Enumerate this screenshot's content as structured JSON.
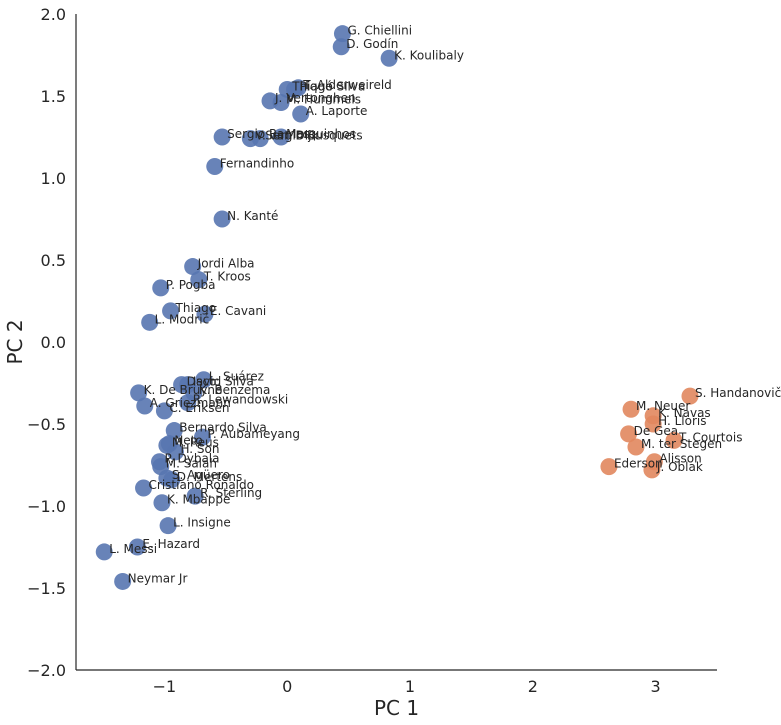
{
  "chart_data": {
    "type": "scatter",
    "title": "",
    "xlabel": "PC 1",
    "ylabel": "PC 2",
    "xlim": [
      -1.72,
      3.5
    ],
    "ylim": [
      -2.0,
      2.0
    ],
    "x_ticks": [
      -1,
      0,
      1,
      2,
      3
    ],
    "y_ticks": [
      2.0,
      1.5,
      1.0,
      0.5,
      0.0,
      -0.5,
      -1.0,
      -1.5,
      -2.0
    ],
    "x_tick_labels": [
      "−1",
      "0",
      "1",
      "2",
      "3"
    ],
    "y_tick_labels": [
      "2.0",
      "1.5",
      "1.0",
      "0.5",
      "0.0",
      "−0.5",
      "−1.0",
      "−1.5",
      "−2.0"
    ],
    "grid": false,
    "colors": {
      "cluster_a": "#5875b0",
      "cluster_b": "#e1875e",
      "axis": "#262626"
    },
    "series": [
      {
        "color": "#5875b0",
        "points": [
          {
            "label": "G. Chiellini",
            "x": 0.45,
            "y": 1.88
          },
          {
            "label": "D. Godín",
            "x": 0.44,
            "y": 1.8
          },
          {
            "label": "K. Koulibaly",
            "x": 0.83,
            "y": 1.73
          },
          {
            "label": "T. Alderweireld",
            "x": 0.09,
            "y": 1.55
          },
          {
            "label": "Thiago Silva",
            "x": 0.0,
            "y": 1.54
          },
          {
            "label": "Piqué",
            "x": 0.06,
            "y": 1.54
          },
          {
            "label": "M. Hummels",
            "x": -0.05,
            "y": 1.46
          },
          {
            "label": "J. Vertonghen",
            "x": -0.14,
            "y": 1.47
          },
          {
            "label": "A. Laporte",
            "x": 0.11,
            "y": 1.39
          },
          {
            "label": "Sergio Ramos",
            "x": -0.53,
            "y": 1.25
          },
          {
            "label": "Sergio Busquets",
            "x": -0.22,
            "y": 1.24
          },
          {
            "label": "V. van Dijk",
            "x": -0.3,
            "y": 1.24
          },
          {
            "label": "Marquinhos",
            "x": -0.05,
            "y": 1.25
          },
          {
            "label": "Fernandinho",
            "x": -0.59,
            "y": 1.07
          },
          {
            "label": "N. Kanté",
            "x": -0.53,
            "y": 0.75
          },
          {
            "label": "Jordi Alba",
            "x": -0.77,
            "y": 0.46
          },
          {
            "label": "T. Kroos",
            "x": -0.72,
            "y": 0.38
          },
          {
            "label": "P. Pogba",
            "x": -1.03,
            "y": 0.33
          },
          {
            "label": "Thiago",
            "x": -0.95,
            "y": 0.19
          },
          {
            "label": "E. Cavani",
            "x": -0.67,
            "y": 0.17
          },
          {
            "label": "L. Modrić",
            "x": -1.12,
            "y": 0.12
          },
          {
            "label": "L. Suárez",
            "x": -0.68,
            "y": -0.23
          },
          {
            "label": "David Silva",
            "x": -0.86,
            "y": -0.26
          },
          {
            "label": "Isco",
            "x": -0.81,
            "y": -0.26
          },
          {
            "label": "K. Benzema",
            "x": -0.76,
            "y": -0.31
          },
          {
            "label": "K. De Bruyne",
            "x": -1.21,
            "y": -0.31
          },
          {
            "label": "R. Lewandowski",
            "x": -0.81,
            "y": -0.37
          },
          {
            "label": "A. Griezmann",
            "x": -1.16,
            "y": -0.39
          },
          {
            "label": "C. Eriksen",
            "x": -1.0,
            "y": -0.42
          },
          {
            "label": "Bernardo Silva",
            "x": -0.92,
            "y": -0.54
          },
          {
            "label": "P. Aubameyang",
            "x": -0.69,
            "y": -0.58
          },
          {
            "label": "M. Reus",
            "x": -0.98,
            "y": -0.63
          },
          {
            "label": "Neto",
            "x": -0.96,
            "y": -0.62
          },
          {
            "label": "H. Son",
            "x": -0.91,
            "y": -0.67
          },
          {
            "label": "P. Dybala",
            "x": -1.04,
            "y": -0.73
          },
          {
            "label": "M. Salah",
            "x": -1.03,
            "y": -0.76
          },
          {
            "label": "S. Agüero",
            "x": -0.98,
            "y": -0.83
          },
          {
            "label": "D. Mertens",
            "x": -0.94,
            "y": -0.84
          },
          {
            "label": "Cristiano Ronaldo",
            "x": -1.17,
            "y": -0.89
          },
          {
            "label": "R. Sterling",
            "x": -0.75,
            "y": -0.94
          },
          {
            "label": "K. Mbappé",
            "x": -1.02,
            "y": -0.98
          },
          {
            "label": "L. Insigne",
            "x": -0.97,
            "y": -1.12
          },
          {
            "label": "E. Hazard",
            "x": -1.22,
            "y": -1.25
          },
          {
            "label": "L. Messi",
            "x": -1.49,
            "y": -1.28
          },
          {
            "label": "Neymar Jr",
            "x": -1.34,
            "y": -1.46
          }
        ]
      },
      {
        "color": "#e1875e",
        "points": [
          {
            "label": "S. Handanovič",
            "x": 3.28,
            "y": -0.33
          },
          {
            "label": "M. Neuer",
            "x": 2.8,
            "y": -0.41
          },
          {
            "label": "K. Navas",
            "x": 2.98,
            "y": -0.45
          },
          {
            "label": "H. Lloris",
            "x": 2.98,
            "y": -0.5
          },
          {
            "label": "De Gea",
            "x": 2.78,
            "y": -0.56
          },
          {
            "label": "T. Courtois",
            "x": 3.15,
            "y": -0.6
          },
          {
            "label": "M. ter Stegen",
            "x": 2.84,
            "y": -0.64
          },
          {
            "label": "Alisson",
            "x": 2.99,
            "y": -0.73
          },
          {
            "label": "Ederson",
            "x": 2.62,
            "y": -0.76
          },
          {
            "label": "J. Oblak",
            "x": 2.97,
            "y": -0.78
          }
        ]
      }
    ]
  }
}
